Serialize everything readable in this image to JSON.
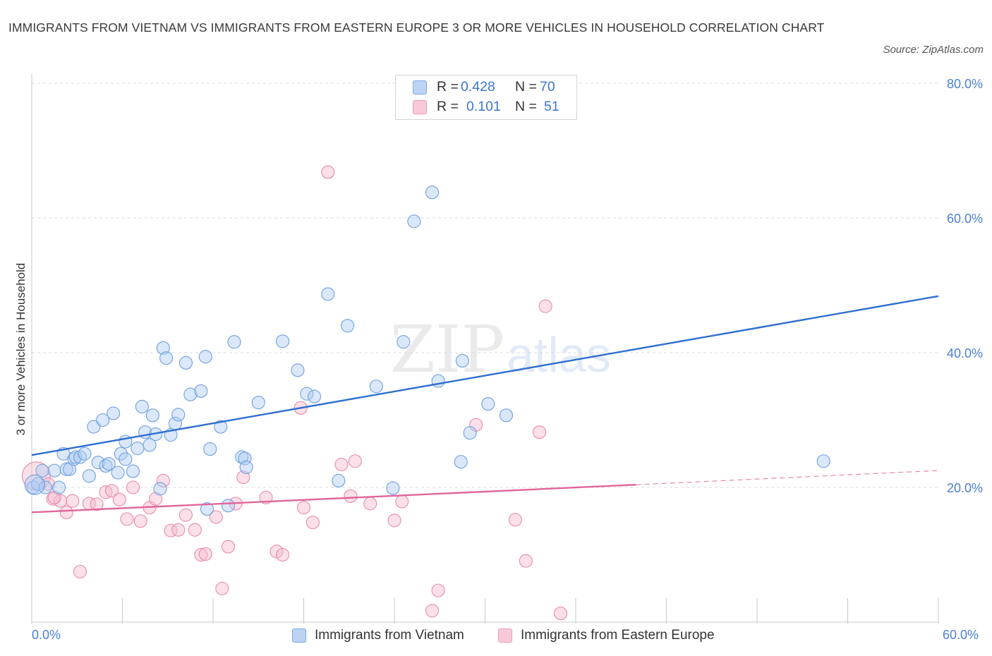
{
  "title": "IMMIGRANTS FROM VIETNAM VS IMMIGRANTS FROM EASTERN EUROPE 3 OR MORE VEHICLES IN HOUSEHOLD CORRELATION CHART",
  "source": "Source: ZipAtlas.com",
  "watermark": {
    "zip": "ZIP",
    "atlas": "atlas"
  },
  "legend_box": {
    "rows": [
      {
        "r_label": "R =",
        "r_value": "0.428",
        "n_label": "N =",
        "n_value": "70",
        "color": "#bcd4f4"
      },
      {
        "r_label": "R =",
        "r_value": "0.101",
        "n_label": "N =",
        "n_value": "51",
        "color": "#f8c9d9"
      }
    ]
  },
  "bottom_legend": {
    "vietnam": "Immigrants from Vietnam",
    "eastern_europe": "Immigrants from Eastern Europe"
  },
  "x_axis_labels": {
    "left": "0.0%",
    "right": "60.0%"
  },
  "chart_data": {
    "type": "scatter",
    "title": "IMMIGRANTS FROM VIETNAM VS IMMIGRANTS FROM EASTERN EUROPE 3 OR MORE VEHICLES IN HOUSEHOLD CORRELATION CHART",
    "xlabel": "",
    "ylabel": "3 or more Vehicles in Household",
    "xlim": [
      0,
      60
    ],
    "ylim": [
      0,
      80
    ],
    "y_ticks": [
      20,
      40,
      60,
      80
    ],
    "y_tick_labels": [
      "20.0%",
      "40.0%",
      "60.0%",
      "80.0%"
    ],
    "x_tick_labels": [
      "0.0%",
      "60.0%"
    ],
    "grid": true,
    "legend_placement": "top-center",
    "colors": {
      "vietnam": "#2f6fd0",
      "eastern_europe": "#e0669a"
    },
    "series": [
      {
        "name": "Immigrants from Vietnam",
        "R": 0.428,
        "N": 70,
        "trend": {
          "x": [
            0,
            60
          ],
          "y": [
            24.8,
            48.4
          ]
        },
        "points": [
          [
            0.1,
            20.0
          ],
          [
            0.4,
            20.5
          ],
          [
            0.7,
            22.5
          ],
          [
            0.9,
            20.0
          ],
          [
            1.5,
            22.5
          ],
          [
            1.8,
            20.0
          ],
          [
            2.1,
            25.0
          ],
          [
            2.3,
            22.7
          ],
          [
            2.5,
            22.7
          ],
          [
            2.8,
            24.2
          ],
          [
            2.9,
            24.5
          ],
          [
            3.2,
            24.5
          ],
          [
            3.5,
            25.0
          ],
          [
            3.8,
            21.7
          ],
          [
            4.1,
            29.0
          ],
          [
            4.4,
            23.7
          ],
          [
            4.7,
            30.0
          ],
          [
            4.9,
            23.2
          ],
          [
            5.1,
            23.5
          ],
          [
            5.4,
            31.0
          ],
          [
            5.7,
            22.2
          ],
          [
            5.9,
            25.0
          ],
          [
            6.2,
            24.2
          ],
          [
            6.2,
            26.8
          ],
          [
            6.7,
            22.4
          ],
          [
            7.0,
            25.8
          ],
          [
            7.3,
            32.0
          ],
          [
            7.5,
            28.2
          ],
          [
            7.8,
            26.3
          ],
          [
            8.0,
            30.7
          ],
          [
            8.2,
            27.9
          ],
          [
            8.5,
            19.8
          ],
          [
            8.7,
            40.7
          ],
          [
            8.9,
            39.2
          ],
          [
            9.2,
            27.8
          ],
          [
            9.5,
            29.5
          ],
          [
            9.7,
            30.8
          ],
          [
            10.2,
            38.5
          ],
          [
            10.5,
            33.8
          ],
          [
            11.2,
            34.3
          ],
          [
            11.5,
            39.4
          ],
          [
            11.6,
            16.8
          ],
          [
            11.8,
            25.7
          ],
          [
            12.5,
            29.0
          ],
          [
            13.0,
            17.3
          ],
          [
            13.4,
            41.6
          ],
          [
            13.9,
            24.5
          ],
          [
            14.1,
            24.3
          ],
          [
            14.2,
            23.0
          ],
          [
            15.0,
            32.6
          ],
          [
            16.6,
            41.7
          ],
          [
            17.6,
            37.4
          ],
          [
            18.2,
            33.9
          ],
          [
            18.7,
            33.5
          ],
          [
            19.6,
            48.7
          ],
          [
            20.3,
            21.0
          ],
          [
            20.9,
            44.0
          ],
          [
            22.8,
            35.0
          ],
          [
            23.9,
            19.9
          ],
          [
            24.6,
            41.6
          ],
          [
            25.3,
            59.5
          ],
          [
            26.5,
            63.8
          ],
          [
            26.9,
            35.8
          ],
          [
            28.4,
            23.8
          ],
          [
            28.5,
            38.8
          ],
          [
            29.0,
            28.1
          ],
          [
            30.2,
            32.4
          ],
          [
            31.4,
            30.7
          ],
          [
            52.4,
            23.9
          ],
          [
            0.2,
            20.4
          ]
        ]
      },
      {
        "name": "Immigrants from Eastern Europe",
        "R": 0.101,
        "N": 51,
        "trend": {
          "x": [
            0,
            40
          ],
          "y": [
            16.3,
            20.4
          ]
        },
        "trend_dashed": {
          "x": [
            40,
            60
          ],
          "y": [
            20.4,
            22.5
          ]
        },
        "points": [
          [
            0.3,
            21.7
          ],
          [
            1.1,
            20.5
          ],
          [
            1.4,
            18.3
          ],
          [
            1.9,
            18.0
          ],
          [
            2.3,
            16.3
          ],
          [
            2.7,
            18.0
          ],
          [
            3.2,
            7.5
          ],
          [
            3.8,
            17.6
          ],
          [
            4.3,
            17.5
          ],
          [
            4.9,
            19.3
          ],
          [
            5.3,
            19.5
          ],
          [
            5.8,
            18.2
          ],
          [
            6.3,
            15.3
          ],
          [
            6.7,
            20.0
          ],
          [
            7.2,
            15.0
          ],
          [
            7.8,
            17.0
          ],
          [
            8.2,
            18.3
          ],
          [
            8.7,
            21.0
          ],
          [
            9.2,
            13.6
          ],
          [
            9.7,
            13.7
          ],
          [
            10.2,
            15.9
          ],
          [
            10.8,
            13.7
          ],
          [
            11.2,
            10.0
          ],
          [
            11.5,
            10.1
          ],
          [
            12.2,
            15.6
          ],
          [
            12.6,
            5.0
          ],
          [
            13.0,
            11.2
          ],
          [
            13.5,
            17.6
          ],
          [
            14.0,
            21.5
          ],
          [
            15.5,
            18.5
          ],
          [
            16.2,
            10.5
          ],
          [
            16.6,
            10.0
          ],
          [
            17.8,
            31.8
          ],
          [
            18.0,
            17.0
          ],
          [
            18.6,
            14.8
          ],
          [
            19.6,
            66.8
          ],
          [
            20.5,
            23.4
          ],
          [
            21.1,
            18.7
          ],
          [
            21.4,
            23.9
          ],
          [
            22.4,
            17.6
          ],
          [
            24.0,
            15.1
          ],
          [
            24.5,
            17.9
          ],
          [
            26.5,
            1.7
          ],
          [
            26.9,
            4.7
          ],
          [
            29.4,
            29.3
          ],
          [
            32.0,
            15.2
          ],
          [
            32.7,
            9.1
          ],
          [
            33.6,
            28.2
          ],
          [
            34.0,
            46.9
          ],
          [
            35.0,
            1.3
          ],
          [
            1.5,
            18.5
          ]
        ]
      }
    ]
  }
}
